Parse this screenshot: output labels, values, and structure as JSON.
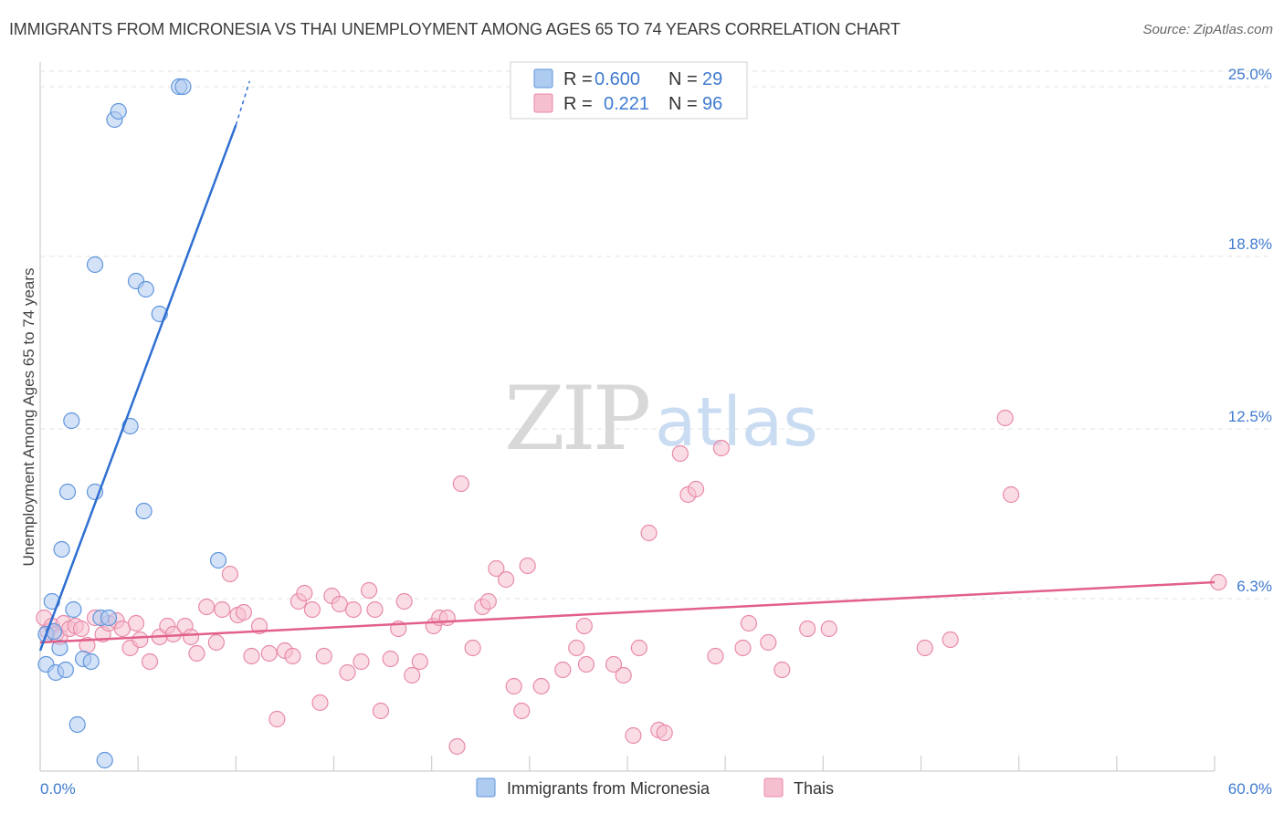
{
  "title": "IMMIGRANTS FROM MICRONESIA VS THAI UNEMPLOYMENT AMONG AGES 65 TO 74 YEARS CORRELATION CHART",
  "source": "Source: ZipAtlas.com",
  "watermark": {
    "zip": "ZIP",
    "atlas": "atlas"
  },
  "colors": {
    "blue_fill": "#aecbf0",
    "blue_stroke": "#5f95dc",
    "blue_line": "#2f6fd1",
    "pink_fill": "#f6bfd0",
    "pink_stroke": "#e88aa8",
    "pink_line": "#e2608a",
    "grid": "#e3e3e3",
    "axis_label": "#3f7ad0"
  },
  "legend": {
    "rows": [
      {
        "r_label": "R =",
        "r_value": "0.600",
        "n_label": "N =",
        "n_value": "29"
      },
      {
        "r_label": "R =",
        "r_value": "0.221",
        "n_label": "N =",
        "n_value": "96"
      }
    ]
  },
  "chart_data": {
    "type": "scatter",
    "xlabel": "",
    "ylabel": "Unemployment Among Ages 65 to 74 years",
    "xlim": [
      0,
      60
    ],
    "ylim": [
      0,
      25.9
    ],
    "x_tick_labels": [
      "0.0%",
      "60.0%"
    ],
    "y_ticks": [
      6.3,
      12.5,
      18.8,
      25.0
    ],
    "y_tick_labels": [
      "6.3%",
      "12.5%",
      "18.8%",
      "25.0%"
    ],
    "legend_position": "top-center",
    "series": [
      {
        "name": "Immigrants from Micronesia",
        "r": 0.6,
        "n": 29,
        "trend": {
          "x": [
            0,
            10
          ],
          "y": [
            4.4,
            23.6
          ],
          "dash_x": [
            10,
            10.7
          ],
          "dash_y": [
            23.6,
            25.2
          ]
        },
        "points": [
          [
            0.3,
            5.0
          ],
          [
            0.3,
            3.9
          ],
          [
            0.6,
            6.2
          ],
          [
            0.7,
            5.1
          ],
          [
            0.8,
            3.6
          ],
          [
            1.0,
            4.5
          ],
          [
            1.1,
            8.1
          ],
          [
            1.3,
            3.7
          ],
          [
            1.4,
            10.2
          ],
          [
            1.6,
            12.8
          ],
          [
            1.7,
            5.9
          ],
          [
            1.9,
            1.7
          ],
          [
            2.2,
            4.1
          ],
          [
            2.6,
            4.0
          ],
          [
            2.8,
            10.2
          ],
          [
            2.8,
            18.5
          ],
          [
            3.1,
            5.6
          ],
          [
            3.3,
            0.4
          ],
          [
            3.5,
            5.6
          ],
          [
            3.8,
            23.8
          ],
          [
            4.0,
            24.1
          ],
          [
            4.6,
            12.6
          ],
          [
            4.9,
            17.9
          ],
          [
            5.3,
            9.5
          ],
          [
            5.4,
            17.6
          ],
          [
            6.1,
            16.7
          ],
          [
            7.1,
            25.0
          ],
          [
            7.3,
            25.0
          ],
          [
            9.1,
            7.7
          ]
        ]
      },
      {
        "name": "Thais",
        "r": 0.221,
        "n": 96,
        "trend": {
          "x": [
            0,
            60
          ],
          "y": [
            4.7,
            6.9
          ]
        },
        "points": [
          [
            0.2,
            5.6
          ],
          [
            0.4,
            5.1
          ],
          [
            0.6,
            5.3
          ],
          [
            0.8,
            5.0
          ],
          [
            1.0,
            4.9
          ],
          [
            1.2,
            5.4
          ],
          [
            1.5,
            5.2
          ],
          [
            1.8,
            5.3
          ],
          [
            2.1,
            5.2
          ],
          [
            2.4,
            4.6
          ],
          [
            2.8,
            5.6
          ],
          [
            3.2,
            5.0
          ],
          [
            3.5,
            5.4
          ],
          [
            3.9,
            5.5
          ],
          [
            4.2,
            5.2
          ],
          [
            4.6,
            4.5
          ],
          [
            4.9,
            5.4
          ],
          [
            5.1,
            4.8
          ],
          [
            5.6,
            4.0
          ],
          [
            6.1,
            4.9
          ],
          [
            6.5,
            5.3
          ],
          [
            6.8,
            5.0
          ],
          [
            7.4,
            5.3
          ],
          [
            7.7,
            4.9
          ],
          [
            8.0,
            4.3
          ],
          [
            8.5,
            6.0
          ],
          [
            9.0,
            4.7
          ],
          [
            9.3,
            5.9
          ],
          [
            9.7,
            7.2
          ],
          [
            10.1,
            5.7
          ],
          [
            10.4,
            5.8
          ],
          [
            10.8,
            4.2
          ],
          [
            11.2,
            5.3
          ],
          [
            11.7,
            4.3
          ],
          [
            12.1,
            1.9
          ],
          [
            12.5,
            4.4
          ],
          [
            12.9,
            4.2
          ],
          [
            13.2,
            6.2
          ],
          [
            13.5,
            6.5
          ],
          [
            13.9,
            5.9
          ],
          [
            14.3,
            2.5
          ],
          [
            14.5,
            4.2
          ],
          [
            14.9,
            6.4
          ],
          [
            15.3,
            6.1
          ],
          [
            15.7,
            3.6
          ],
          [
            16.0,
            5.9
          ],
          [
            16.4,
            4.0
          ],
          [
            16.8,
            6.6
          ],
          [
            17.1,
            5.9
          ],
          [
            17.4,
            2.2
          ],
          [
            17.9,
            4.1
          ],
          [
            18.3,
            5.2
          ],
          [
            18.6,
            6.2
          ],
          [
            19.0,
            3.5
          ],
          [
            19.4,
            4.0
          ],
          [
            20.1,
            5.3
          ],
          [
            20.4,
            5.6
          ],
          [
            20.8,
            5.6
          ],
          [
            21.3,
            0.9
          ],
          [
            21.5,
            10.5
          ],
          [
            22.1,
            4.5
          ],
          [
            22.6,
            6.0
          ],
          [
            22.9,
            6.2
          ],
          [
            23.3,
            7.4
          ],
          [
            23.8,
            7.0
          ],
          [
            24.2,
            3.1
          ],
          [
            24.6,
            2.2
          ],
          [
            24.9,
            7.5
          ],
          [
            25.6,
            3.1
          ],
          [
            26.7,
            3.7
          ],
          [
            27.4,
            4.5
          ],
          [
            27.8,
            5.3
          ],
          [
            27.9,
            3.9
          ],
          [
            29.3,
            3.9
          ],
          [
            29.8,
            3.5
          ],
          [
            30.3,
            1.3
          ],
          [
            30.6,
            4.5
          ],
          [
            31.1,
            8.7
          ],
          [
            31.6,
            1.5
          ],
          [
            31.9,
            1.4
          ],
          [
            32.7,
            11.6
          ],
          [
            33.1,
            10.1
          ],
          [
            33.5,
            10.3
          ],
          [
            34.5,
            4.2
          ],
          [
            34.8,
            11.8
          ],
          [
            35.9,
            4.5
          ],
          [
            36.2,
            5.4
          ],
          [
            37.2,
            4.7
          ],
          [
            37.9,
            3.7
          ],
          [
            39.2,
            5.2
          ],
          [
            40.3,
            5.2
          ],
          [
            45.2,
            4.5
          ],
          [
            46.5,
            4.8
          ],
          [
            49.3,
            12.9
          ],
          [
            49.6,
            10.1
          ],
          [
            60.2,
            6.9
          ]
        ]
      }
    ]
  }
}
